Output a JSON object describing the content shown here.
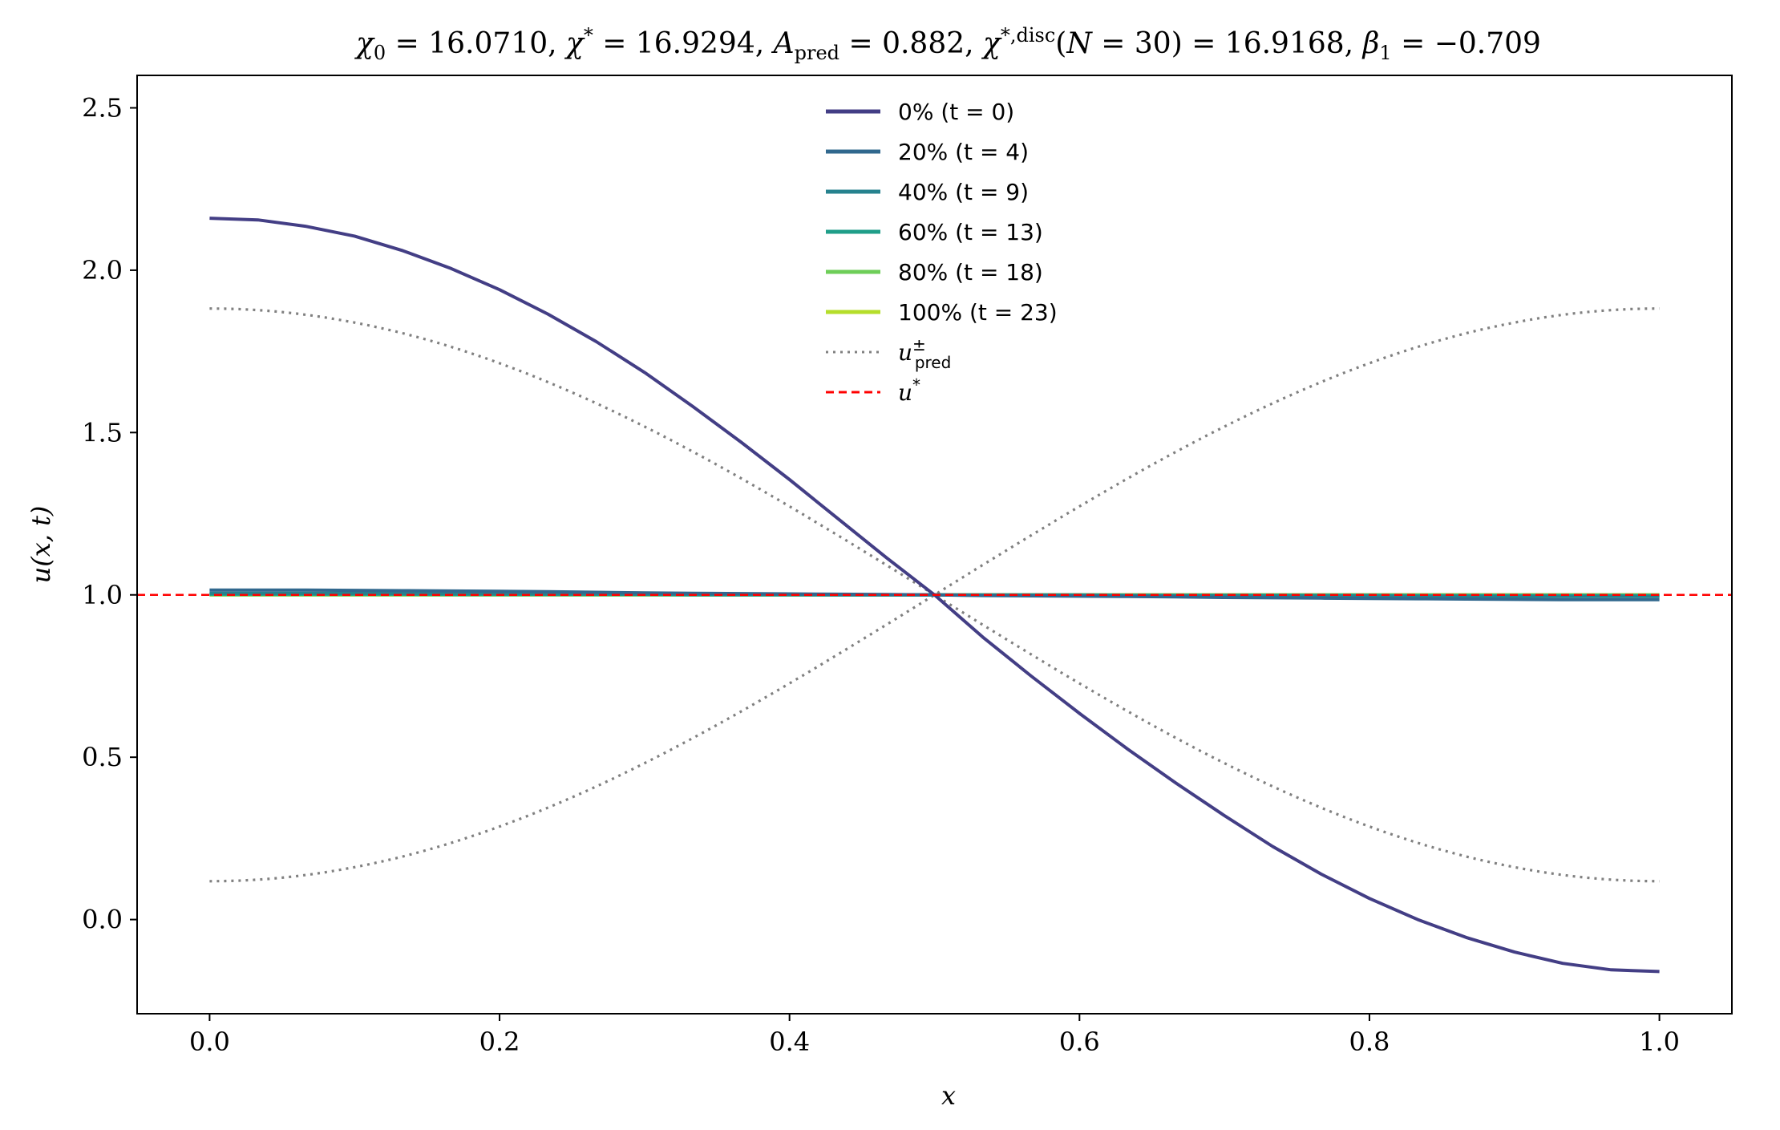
{
  "chart_data": {
    "type": "line",
    "title": "χ₀ = 16.0710,  χ* = 16.9294,  A_pred = 0.882,  χ*,disc(N = 30) = 16.9168,  β₁ = −0.709",
    "xlabel": "x",
    "ylabel": "u(x, t)",
    "xlim": [
      -0.05,
      1.05
    ],
    "ylim": [
      -0.29,
      2.6
    ],
    "xticks": [
      "0.0",
      "0.2",
      "0.4",
      "0.6",
      "0.8",
      "1.0"
    ],
    "yticks": [
      "0.0",
      "0.5",
      "1.0",
      "1.5",
      "2.0",
      "2.5"
    ],
    "legend_position": "top-center",
    "x": [
      0.0,
      0.0333,
      0.0667,
      0.1,
      0.1333,
      0.1667,
      0.2,
      0.2333,
      0.2667,
      0.3,
      0.3333,
      0.3667,
      0.4,
      0.4333,
      0.4667,
      0.5,
      0.5333,
      0.5667,
      0.6,
      0.6333,
      0.6667,
      0.7,
      0.7333,
      0.7667,
      0.8,
      0.8333,
      0.8667,
      0.9,
      0.9333,
      0.9667,
      1.0
    ],
    "series": [
      {
        "name": "0% (t = 0)",
        "color": "#433e85",
        "style": "solid",
        "values": [
          2.16,
          2.155,
          2.135,
          2.105,
          2.06,
          2.005,
          1.94,
          1.865,
          1.78,
          1.685,
          1.58,
          1.47,
          1.355,
          1.235,
          1.115,
          1.0,
          0.87,
          0.75,
          0.635,
          0.525,
          0.42,
          0.32,
          0.225,
          0.14,
          0.065,
          0.0,
          -0.055,
          -0.1,
          -0.135,
          -0.155,
          -0.16
        ]
      },
      {
        "name": "20% (t = 4)",
        "color": "#31688e",
        "style": "solid",
        "values": [
          1.015,
          1.015,
          1.015,
          1.014,
          1.013,
          1.012,
          1.011,
          1.01,
          1.008,
          1.006,
          1.005,
          1.004,
          1.003,
          1.002,
          1.001,
          1.0,
          0.998,
          0.997,
          0.996,
          0.995,
          0.994,
          0.992,
          0.991,
          0.99,
          0.989,
          0.988,
          0.987,
          0.986,
          0.985,
          0.985,
          0.985
        ]
      },
      {
        "name": "40% (t = 9)",
        "color": "#26828e",
        "style": "solid",
        "values": [
          1.005,
          1.005,
          1.005,
          1.005,
          1.004,
          1.004,
          1.004,
          1.003,
          1.003,
          1.002,
          1.002,
          1.001,
          1.001,
          1.0,
          1.0,
          1.0,
          0.999,
          0.999,
          0.998,
          0.998,
          0.997,
          0.997,
          0.996,
          0.996,
          0.996,
          0.995,
          0.995,
          0.995,
          0.995,
          0.995,
          0.995
        ]
      },
      {
        "name": "60% (t = 13)",
        "color": "#1f9e89",
        "style": "solid",
        "values": [
          1.002,
          1.002,
          1.002,
          1.002,
          1.002,
          1.001,
          1.001,
          1.001,
          1.001,
          1.001,
          1.0,
          1.0,
          1.0,
          1.0,
          1.0,
          1.0,
          1.0,
          1.0,
          1.0,
          0.999,
          0.999,
          0.999,
          0.999,
          0.999,
          0.999,
          0.998,
          0.998,
          0.998,
          0.998,
          0.998,
          0.998
        ]
      },
      {
        "name": "80% (t = 18)",
        "color": "#6ece58",
        "style": "solid",
        "values": [
          1.0,
          1.0,
          1.0,
          1.0,
          1.0,
          1.0,
          1.0,
          1.0,
          1.0,
          1.0,
          1.0,
          1.0,
          1.0,
          1.0,
          1.0,
          1.0,
          1.0,
          1.0,
          1.0,
          1.0,
          1.0,
          1.0,
          1.0,
          1.0,
          1.0,
          1.0,
          1.0,
          1.0,
          1.0,
          1.0,
          1.0
        ]
      },
      {
        "name": "100% (t = 23)",
        "color": "#b5de2b",
        "style": "solid",
        "values": [
          1.0,
          1.0,
          1.0,
          1.0,
          1.0,
          1.0,
          1.0,
          1.0,
          1.0,
          1.0,
          1.0,
          1.0,
          1.0,
          1.0,
          1.0,
          1.0,
          1.0,
          1.0,
          1.0,
          1.0,
          1.0,
          1.0,
          1.0,
          1.0,
          1.0,
          1.0,
          1.0,
          1.0,
          1.0,
          1.0,
          1.0
        ]
      },
      {
        "name": "u±pred",
        "color": "#808080",
        "style": "dotted",
        "function": "1 ± 0.882·cos(πx)"
      },
      {
        "name": "u*",
        "color": "#ff0000",
        "style": "dashed",
        "hline": 1.0
      }
    ]
  }
}
